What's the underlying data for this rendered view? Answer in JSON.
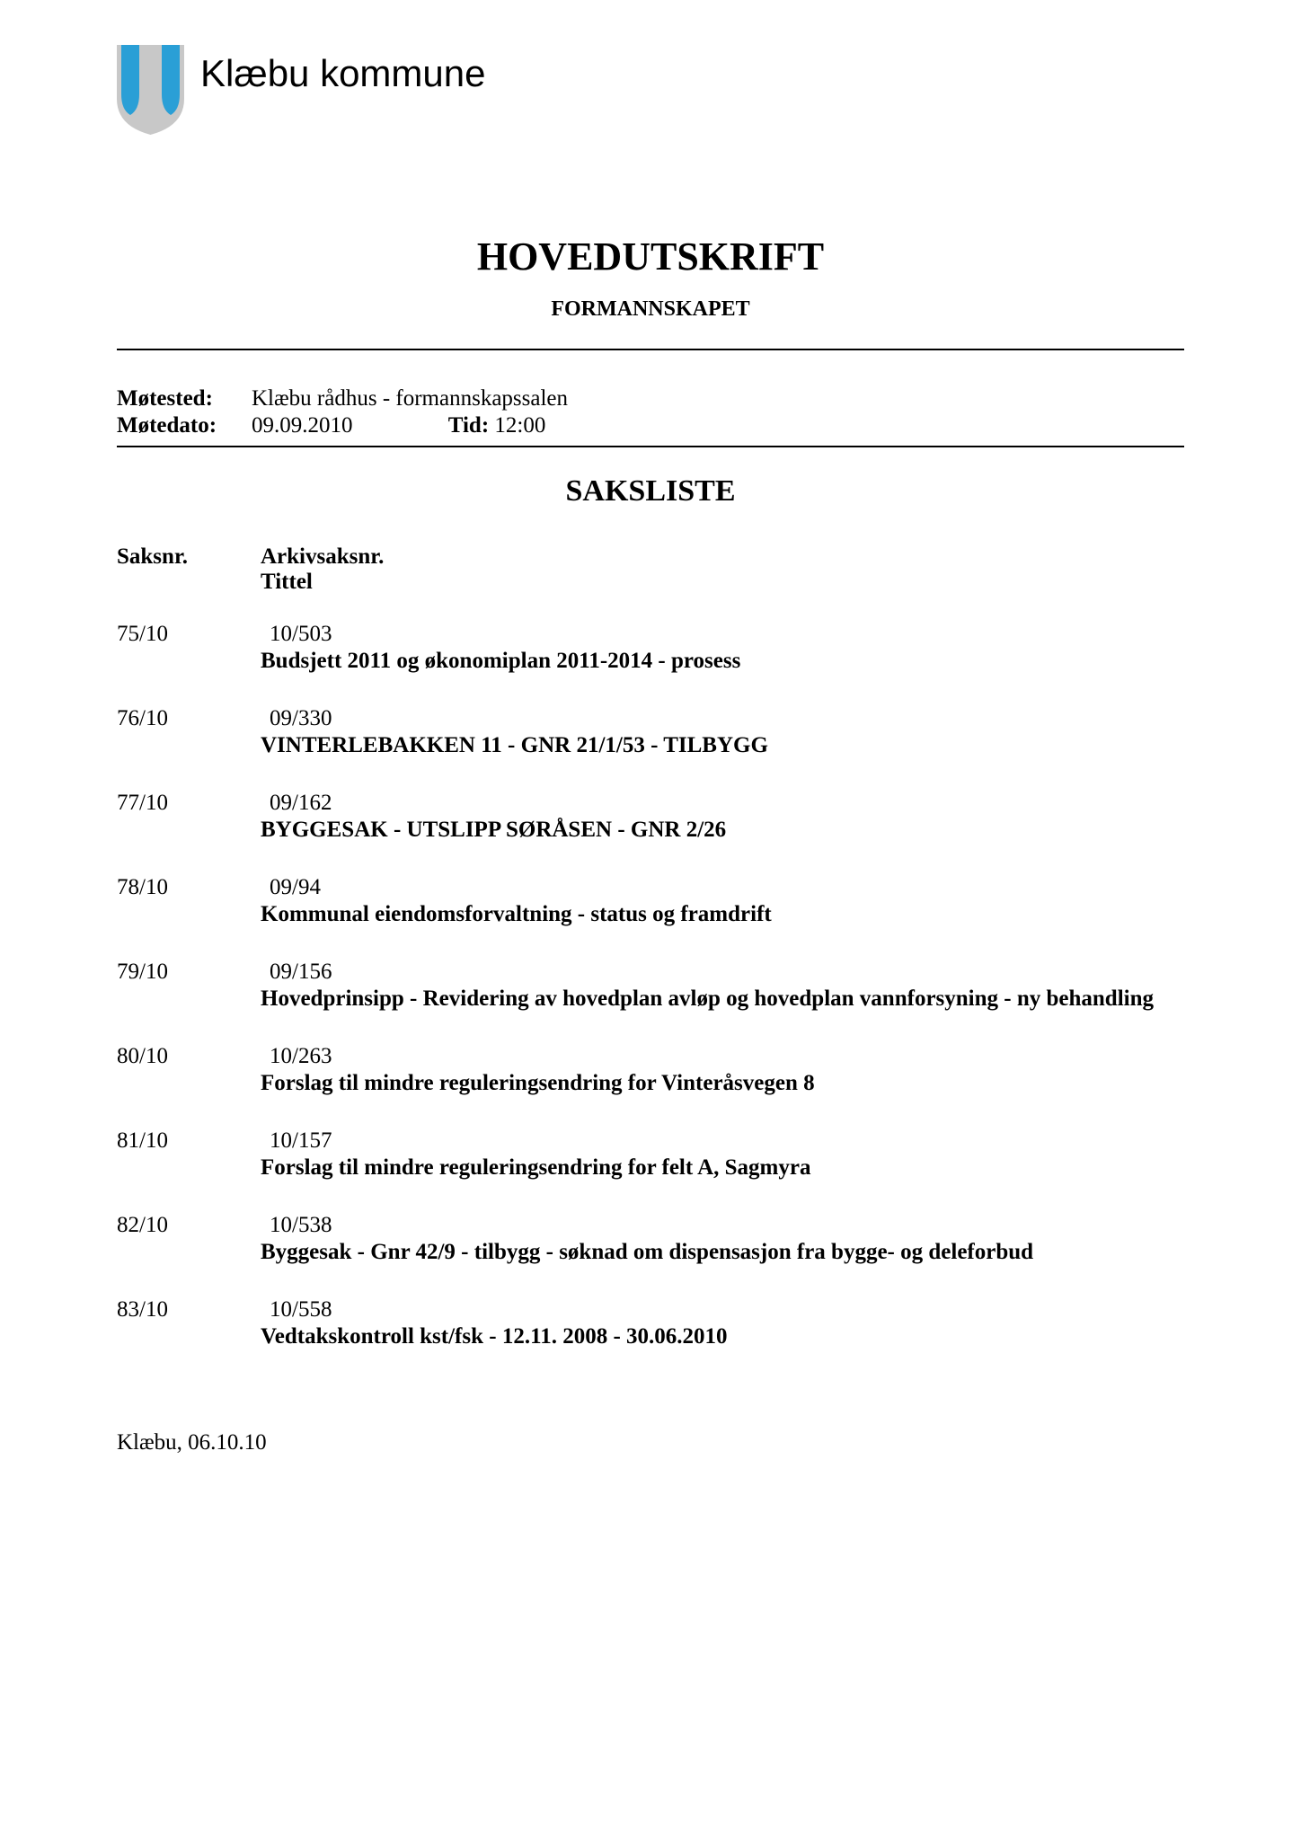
{
  "header": {
    "kommune_name": "Klæbu kommune",
    "logo_colors": {
      "blue": "#2a9fd6",
      "grey": "#c8c8c8"
    }
  },
  "title": "HOVEDUTSKRIFT",
  "subtitle": "FORMANNSKAPET",
  "meeting": {
    "sted_label": "Møtested:",
    "sted_value": "Klæbu rådhus - formannskapssalen",
    "dato_label": "Møtedato:",
    "dato_value": "09.09.2010",
    "tid_label": "Tid:",
    "tid_value": "12:00"
  },
  "saksliste": {
    "title": "SAKSLISTE",
    "header_saksnr": "Saksnr.",
    "header_arkiv": "Arkivsaksnr.",
    "header_tittel": "Tittel",
    "items": [
      {
        "saksnr": "75/10",
        "arkiv": "10/503",
        "tittel": "Budsjett 2011 og økonomiplan 2011-2014 - prosess"
      },
      {
        "saksnr": "76/10",
        "arkiv": "09/330",
        "tittel": "VINTERLEBAKKEN 11 - GNR 21/1/53 - TILBYGG"
      },
      {
        "saksnr": "77/10",
        "arkiv": "09/162",
        "tittel": "BYGGESAK - UTSLIPP SØRÅSEN - GNR 2/26"
      },
      {
        "saksnr": "78/10",
        "arkiv": "09/94",
        "tittel": "Kommunal eiendomsforvaltning - status og framdrift"
      },
      {
        "saksnr": "79/10",
        "arkiv": "09/156",
        "tittel": "Hovedprinsipp - Revidering av hovedplan avløp og hovedplan vannforsyning - ny behandling"
      },
      {
        "saksnr": "80/10",
        "arkiv": "10/263",
        "tittel": "Forslag til mindre reguleringsendring for Vinteråsvegen 8"
      },
      {
        "saksnr": "81/10",
        "arkiv": "10/157",
        "tittel": "Forslag til mindre reguleringsendring for felt A, Sagmyra"
      },
      {
        "saksnr": "82/10",
        "arkiv": "10/538",
        "tittel": "Byggesak - Gnr 42/9 - tilbygg - søknad om dispensasjon fra bygge- og deleforbud"
      },
      {
        "saksnr": "83/10",
        "arkiv": "10/558",
        "tittel": "Vedtakskontroll kst/fsk - 12.11. 2008 - 30.06.2010"
      }
    ]
  },
  "footer_date": "Klæbu, 06.10.10"
}
